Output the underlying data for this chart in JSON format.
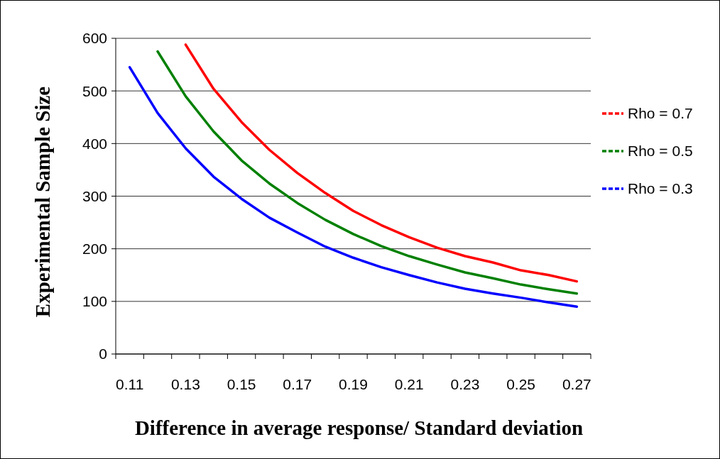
{
  "chart_data": {
    "type": "line",
    "xlabel": "Difference in average response/ Standard deviation",
    "ylabel": "Experimental Sample Size",
    "categories": [
      "0.11",
      null,
      "0.13",
      null,
      "0.15",
      null,
      "0.17",
      null,
      "0.19",
      null,
      "0.21",
      null,
      "0.23",
      null,
      "0.25",
      null,
      "0.27"
    ],
    "series": [
      {
        "name": "Rho = 0.7",
        "color": "#ff0000",
        "values": [
          null,
          null,
          588,
          504,
          441,
          388,
          344,
          306,
          272,
          245,
          222,
          202,
          186,
          174,
          159,
          150,
          138
        ]
      },
      {
        "name": "Rho = 0.5",
        "color": "#008000",
        "values": [
          null,
          575,
          490,
          423,
          368,
          324,
          287,
          255,
          228,
          205,
          186,
          170,
          155,
          144,
          132,
          123,
          115
        ]
      },
      {
        "name": "Rho = 0.3",
        "color": "#0000ff",
        "values": [
          545,
          458,
          391,
          337,
          295,
          259,
          231,
          204,
          183,
          165,
          150,
          136,
          124,
          115,
          107,
          98,
          90
        ]
      }
    ],
    "ylim": [
      0,
      600
    ],
    "yticks": [
      0,
      100,
      200,
      300,
      400,
      500,
      600
    ],
    "grid": "y",
    "legend": "right",
    "line_style": "solid"
  }
}
